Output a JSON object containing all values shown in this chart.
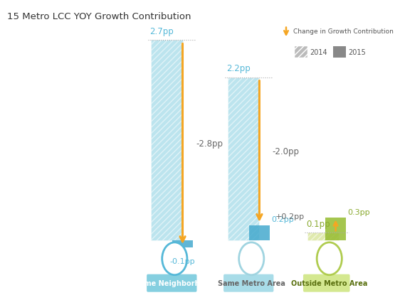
{
  "title": "15 Metro LCC YOY Growth Contribution",
  "categories": [
    "Same Neighborhood",
    "Same Metro Area",
    "Outside Metro Area"
  ],
  "values_2014": [
    2.7,
    2.2,
    0.1
  ],
  "values_2015": [
    -0.1,
    0.2,
    0.3
  ],
  "change": [
    -2.8,
    -2.0,
    0.2
  ],
  "change_labels": [
    "-2.8pp",
    "-2.0pp",
    "+0.2pp"
  ],
  "label_2014": [
    "2.7pp",
    "2.2pp",
    "0.1pp"
  ],
  "label_2015": [
    "-0.1pp",
    "0.2pp",
    "0.3pp"
  ],
  "color_2014_1": "#85cfe0",
  "color_2014_2": "#85cfe0",
  "color_2014_3": "#c8d96c",
  "color_2015_1": "#45aace",
  "color_2015_2": "#45aace",
  "color_2015_3": "#96bc30",
  "arrow_color": "#f5a623",
  "change_text_color": "#666666",
  "cat_bg_1": "#85cfe0",
  "cat_bg_2": "#a8dce8",
  "cat_bg_3": "#d4e890",
  "cat_text_1": "#ffffff",
  "cat_text_2": "#666666",
  "cat_text_3": "#5a7010",
  "label_color_14_1": "#55b8d8",
  "label_color_14_2": "#55b8d8",
  "label_color_14_3": "#8aaa30",
  "label_color_15_1": "#55b8d8",
  "label_color_15_2": "#55b8d8",
  "label_color_15_3": "#8aaa30",
  "circle_edge_1": "#55b8d8",
  "circle_edge_2": "#a0d4e0",
  "circle_edge_3": "#b0cc50",
  "background": "#ffffff",
  "legend_hatch_color": "#bbbbbb",
  "legend_solid_color": "#888888",
  "title_color": "#333333"
}
